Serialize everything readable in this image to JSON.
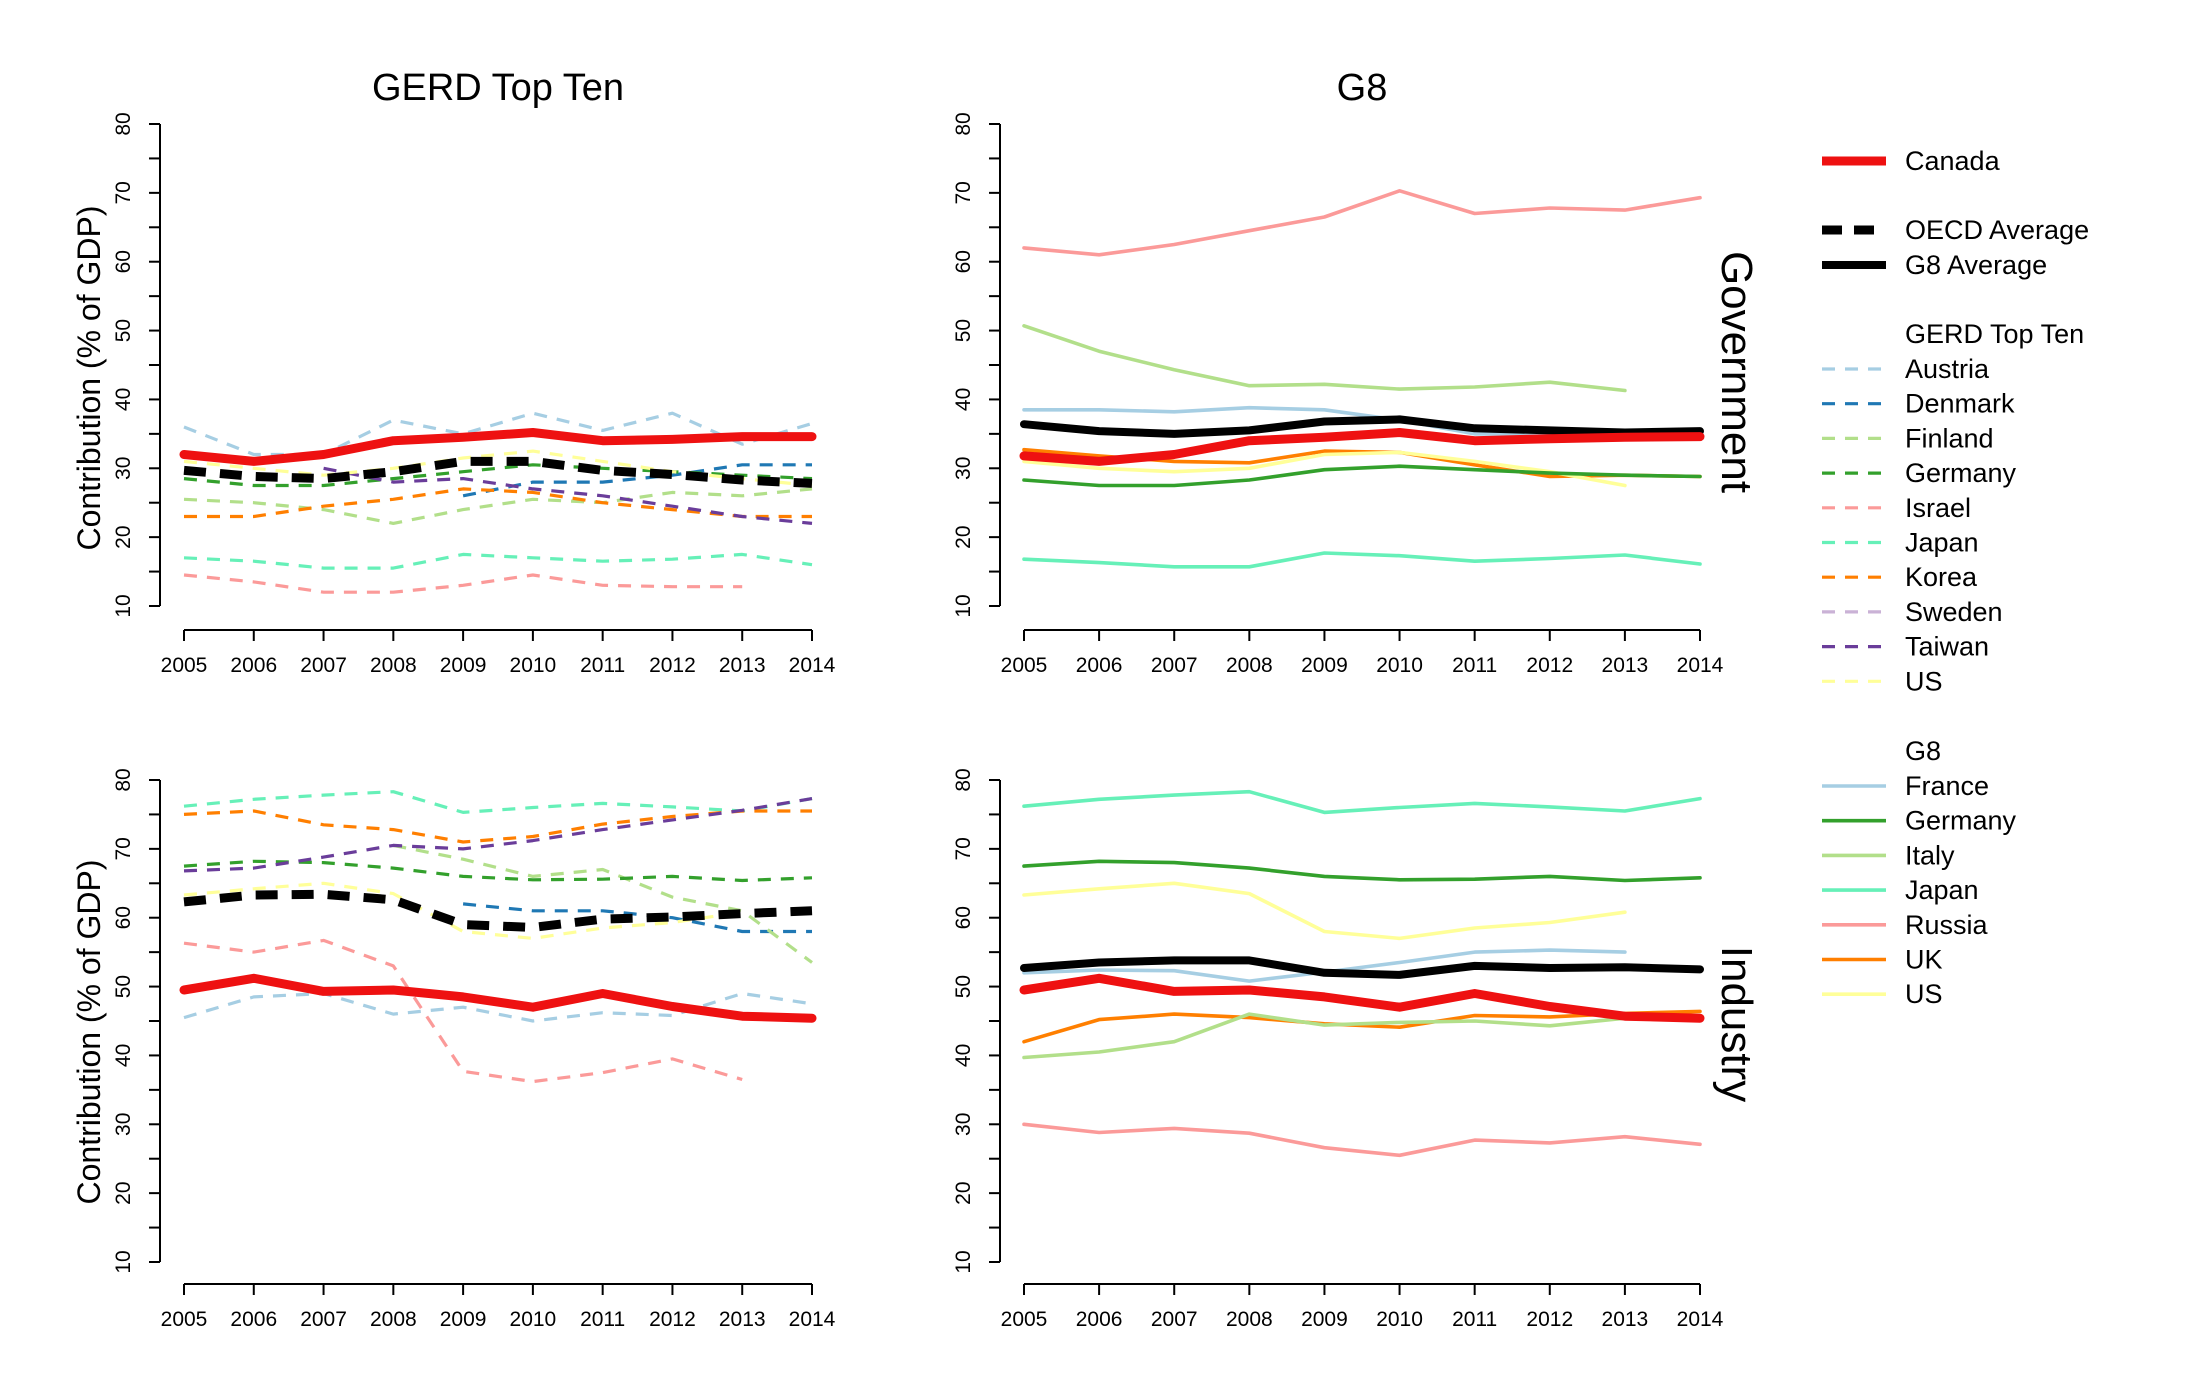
{
  "colors": {
    "Canada": "#ee1111",
    "OECD Average": "#000000",
    "G8 Average": "#000000",
    "Austria": "#a6cee3",
    "Denmark": "#1f78b4",
    "Finland": "#b2df8a",
    "Germany": "#33a02c",
    "Israel": "#fb9a99",
    "Japan": "#66f0b8",
    "Korea": "#ff7f00",
    "Sweden": "#cab2d6",
    "Taiwan": "#6a3d9a",
    "US": "#ffff99",
    "France": "#a6cee3",
    "Italy": "#b2df8a",
    "Russia": "#fb9a99",
    "UK": "#ff7f00"
  },
  "legend": {
    "canada": "Canada",
    "oecd_avg": "OECD Average",
    "g8_avg": "G8 Average",
    "top_ten_header": "GERD Top Ten",
    "top_ten": [
      "Austria",
      "Denmark",
      "Finland",
      "Germany",
      "Israel",
      "Japan",
      "Korea",
      "Sweden",
      "Taiwan",
      "US"
    ],
    "g8_header": "G8",
    "g8": [
      "France",
      "Germany",
      "Italy",
      "Japan",
      "Russia",
      "UK",
      "US"
    ]
  },
  "chart_data": [
    {
      "type": "line",
      "title": "GERD Top Ten",
      "row_label": "",
      "ylabel": "Contribution (% of GDP)",
      "ylim": [
        10,
        80
      ],
      "yticks": [
        10,
        20,
        30,
        40,
        50,
        60,
        70,
        80
      ],
      "x": [
        2005,
        2006,
        2007,
        2008,
        2009,
        2010,
        2011,
        2012,
        2013,
        2014
      ],
      "series": [
        {
          "name": "Austria",
          "style": "dashed",
          "values": [
            36,
            32,
            32,
            37,
            35,
            38,
            35.5,
            38,
            33.5,
            36.5
          ]
        },
        {
          "name": "Denmark",
          "style": "dashed",
          "values": [
            null,
            null,
            null,
            null,
            26,
            28,
            28,
            29,
            30.5,
            30.5
          ]
        },
        {
          "name": "Finland",
          "style": "dashed",
          "values": [
            25.5,
            25,
            24,
            22,
            24,
            25.5,
            25,
            26.5,
            26,
            27
          ]
        },
        {
          "name": "Germany",
          "style": "dashed",
          "values": [
            28.5,
            27.5,
            27.5,
            28.5,
            29.5,
            30.5,
            30,
            29.5,
            29,
            28.5
          ]
        },
        {
          "name": "Israel",
          "style": "dashed",
          "values": [
            14.5,
            13.5,
            12,
            12,
            13,
            14.5,
            13,
            12.8,
            12.8,
            null
          ]
        },
        {
          "name": "Japan",
          "style": "dashed",
          "values": [
            17,
            16.5,
            15.5,
            15.5,
            17.5,
            17,
            16.5,
            16.8,
            17.5,
            16
          ]
        },
        {
          "name": "Korea",
          "style": "dashed",
          "values": [
            23,
            23,
            24.5,
            25.5,
            27,
            26.5,
            25,
            24,
            23,
            23
          ]
        },
        {
          "name": "Sweden",
          "style": "dashed",
          "values": [
            null,
            null,
            null,
            null,
            null,
            null,
            null,
            null,
            null,
            null
          ]
        },
        {
          "name": "Taiwan",
          "style": "dashed",
          "values": [
            null,
            null,
            30,
            28,
            28.5,
            27,
            26,
            24.5,
            23,
            22
          ]
        },
        {
          "name": "US",
          "style": "dashed",
          "values": [
            31,
            30,
            29,
            30,
            31.5,
            32.5,
            31,
            29.5,
            28.5,
            27.5
          ]
        },
        {
          "name": "OECD Average",
          "style": "thickdash",
          "values": [
            29.7,
            28.8,
            28.5,
            29.5,
            31,
            31,
            29.7,
            29.1,
            28.3,
            27.8
          ]
        },
        {
          "name": "Canada",
          "style": "thick",
          "values": [
            32,
            31,
            32,
            34,
            34.5,
            35.2,
            34,
            34.2,
            34.6,
            34.6
          ]
        }
      ]
    },
    {
      "type": "line",
      "title": "G8",
      "row_label": "Government",
      "ylabel": "",
      "ylim": [
        10,
        80
      ],
      "yticks": [
        10,
        20,
        30,
        40,
        50,
        60,
        70,
        80
      ],
      "x": [
        2005,
        2006,
        2007,
        2008,
        2009,
        2010,
        2011,
        2012,
        2013,
        2014
      ],
      "series": [
        {
          "name": "Russia",
          "style": "solid",
          "values": [
            62,
            61,
            62.5,
            64.5,
            66.5,
            70.3,
            67,
            67.8,
            67.5,
            69.3
          ]
        },
        {
          "name": "Italy",
          "style": "solid",
          "values": [
            50.7,
            47,
            44.3,
            42,
            42.2,
            41.5,
            41.8,
            42.5,
            41.3,
            null
          ]
        },
        {
          "name": "France",
          "style": "solid",
          "values": [
            38.5,
            38.5,
            38.2,
            38.8,
            38.5,
            37,
            35,
            35,
            35,
            null
          ]
        },
        {
          "name": "UK",
          "style": "solid",
          "values": [
            32.7,
            31.8,
            31,
            30.8,
            32.5,
            32.3,
            30.5,
            28.8,
            29,
            28.8
          ]
        },
        {
          "name": "US",
          "style": "solid",
          "values": [
            31,
            30,
            29.5,
            30,
            32,
            32.3,
            31,
            29.5,
            27.5,
            null
          ]
        },
        {
          "name": "Germany",
          "style": "solid",
          "values": [
            28.3,
            27.5,
            27.5,
            28.3,
            29.8,
            30.3,
            29.8,
            29.3,
            29,
            28.8
          ]
        },
        {
          "name": "Japan",
          "style": "solid",
          "values": [
            16.8,
            16.3,
            15.7,
            15.7,
            17.7,
            17.3,
            16.5,
            16.9,
            17.4,
            16.1
          ]
        },
        {
          "name": "G8 Average",
          "style": "thickblack",
          "values": [
            36.4,
            35.4,
            35,
            35.5,
            36.8,
            37.1,
            35.8,
            35.5,
            35.2,
            35.4
          ]
        },
        {
          "name": "Canada",
          "style": "thick",
          "values": [
            31.8,
            31,
            32,
            34,
            34.5,
            35.2,
            34,
            34.3,
            34.5,
            34.6
          ]
        }
      ]
    },
    {
      "type": "line",
      "title": "",
      "row_label": "",
      "ylabel": "Contribution (% of GDP)",
      "ylim": [
        10,
        80
      ],
      "yticks": [
        10,
        20,
        30,
        40,
        50,
        60,
        70,
        80
      ],
      "x": [
        2005,
        2006,
        2007,
        2008,
        2009,
        2010,
        2011,
        2012,
        2013,
        2014
      ],
      "series": [
        {
          "name": "Austria",
          "style": "dashed",
          "values": [
            45.5,
            48.5,
            49,
            46,
            47,
            45,
            46.2,
            45.8,
            49,
            47.5
          ]
        },
        {
          "name": "Denmark",
          "style": "dashed",
          "values": [
            null,
            null,
            null,
            null,
            62,
            61,
            61,
            60,
            58,
            58
          ]
        },
        {
          "name": "Finland",
          "style": "dashed",
          "values": [
            null,
            null,
            null,
            70.5,
            68.5,
            66,
            67,
            63,
            61,
            53.5
          ]
        },
        {
          "name": "Germany",
          "style": "dashed",
          "values": [
            67.5,
            68.2,
            68,
            67.2,
            66,
            65.5,
            65.6,
            66,
            65.4,
            65.8
          ]
        },
        {
          "name": "Israel",
          "style": "dashed",
          "values": [
            56.3,
            55,
            56.7,
            53,
            37.7,
            36.2,
            37.5,
            39.5,
            36.5,
            null
          ]
        },
        {
          "name": "Japan",
          "style": "dashed",
          "values": [
            76.2,
            77.2,
            77.8,
            78.3,
            75.3,
            76,
            76.6,
            76.1,
            75.5,
            77.3
          ]
        },
        {
          "name": "Korea",
          "style": "dashed",
          "values": [
            75,
            75.5,
            73.5,
            72.8,
            71,
            71.8,
            73.6,
            74.7,
            75.5,
            75.5
          ]
        },
        {
          "name": "Sweden",
          "style": "dashed",
          "values": [
            null,
            null,
            null,
            null,
            null,
            null,
            null,
            null,
            null,
            null
          ]
        },
        {
          "name": "Taiwan",
          "style": "dashed",
          "values": [
            66.8,
            67.2,
            68.8,
            70.5,
            70,
            71.2,
            72.8,
            74.2,
            75.6,
            77.3
          ]
        },
        {
          "name": "US",
          "style": "dashed",
          "values": [
            63.3,
            64.2,
            65,
            63.5,
            58,
            57,
            58.5,
            59.3,
            60.8,
            null
          ]
        },
        {
          "name": "OECD Average",
          "style": "thickdash",
          "values": [
            62.3,
            63.3,
            63.4,
            62.6,
            59,
            58.6,
            59.8,
            60.1,
            60.6,
            61
          ]
        },
        {
          "name": "Canada",
          "style": "thick",
          "values": [
            49.5,
            51.2,
            49.3,
            49.5,
            48.5,
            47,
            49,
            47.1,
            45.7,
            45.4
          ]
        }
      ]
    },
    {
      "type": "line",
      "title": "",
      "row_label": "Industry",
      "ylabel": "",
      "ylim": [
        10,
        80
      ],
      "yticks": [
        10,
        20,
        30,
        40,
        50,
        60,
        70,
        80
      ],
      "x": [
        2005,
        2006,
        2007,
        2008,
        2009,
        2010,
        2011,
        2012,
        2013,
        2014
      ],
      "series": [
        {
          "name": "Japan",
          "style": "solid",
          "values": [
            76.2,
            77.2,
            77.8,
            78.3,
            75.3,
            76,
            76.6,
            76.1,
            75.5,
            77.3
          ]
        },
        {
          "name": "Germany",
          "style": "solid",
          "values": [
            67.5,
            68.2,
            68,
            67.2,
            66,
            65.5,
            65.6,
            66,
            65.4,
            65.8
          ]
        },
        {
          "name": "US",
          "style": "solid",
          "values": [
            63.3,
            64.2,
            65,
            63.5,
            58,
            57,
            58.5,
            59.3,
            60.8,
            null
          ]
        },
        {
          "name": "France",
          "style": "solid",
          "values": [
            52,
            52.4,
            52.3,
            50.8,
            52.1,
            53.5,
            55,
            55.3,
            55,
            null
          ]
        },
        {
          "name": "UK",
          "style": "solid",
          "values": [
            42,
            45.2,
            46,
            45.5,
            44.6,
            44.1,
            45.8,
            45.6,
            46.1,
            46.4
          ]
        },
        {
          "name": "Italy",
          "style": "solid",
          "values": [
            39.7,
            40.5,
            42,
            46,
            44.4,
            44.8,
            45,
            44.3,
            45.4,
            45.7
          ]
        },
        {
          "name": "Russia",
          "style": "solid",
          "values": [
            30,
            28.8,
            29.4,
            28.7,
            26.6,
            25.5,
            27.7,
            27.3,
            28.2,
            27.1
          ]
        },
        {
          "name": "G8 Average",
          "style": "thickblack",
          "values": [
            52.7,
            53.5,
            53.8,
            53.8,
            52,
            51.7,
            53,
            52.7,
            52.8,
            52.5
          ]
        },
        {
          "name": "Canada",
          "style": "thick",
          "values": [
            49.5,
            51.2,
            49.3,
            49.5,
            48.5,
            47,
            49,
            47.1,
            45.7,
            45.4
          ]
        }
      ]
    }
  ]
}
